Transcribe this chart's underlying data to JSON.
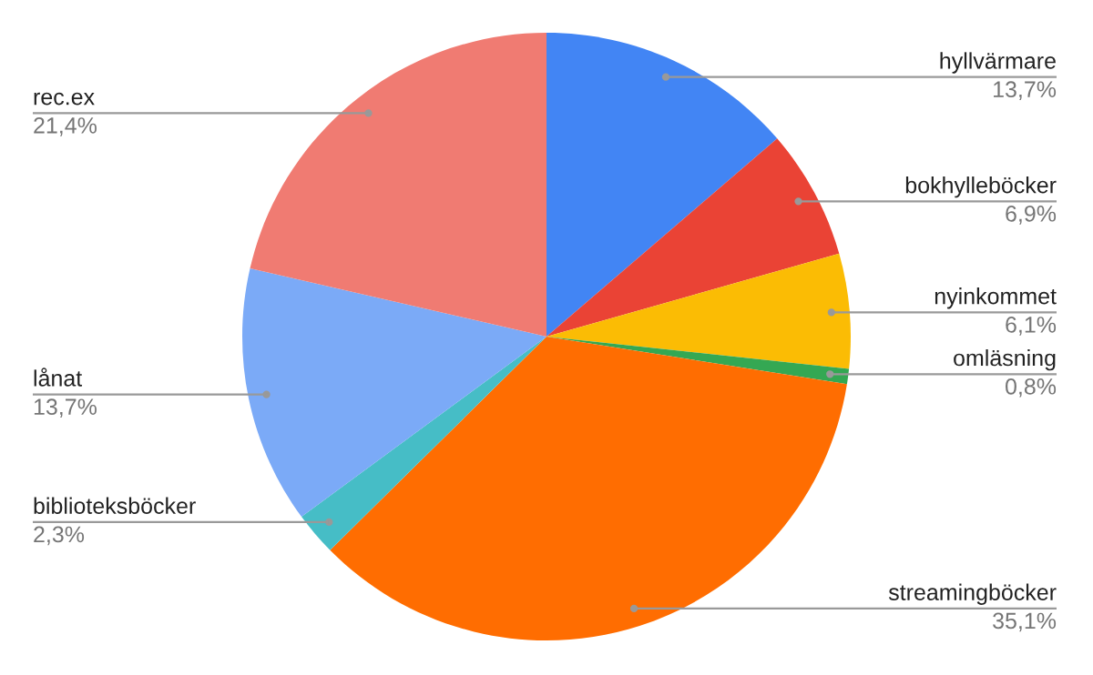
{
  "chart_data": {
    "type": "pie",
    "categories": [
      "hyllvärmare",
      "bokhylleböcker",
      "nyinkommet",
      "omläsning",
      "streamingböcker",
      "biblioteksböcker",
      "lånat",
      "rec.ex"
    ],
    "values": [
      13.7,
      6.9,
      6.1,
      0.8,
      35.1,
      2.3,
      13.7,
      21.4
    ],
    "value_labels": [
      "13,7%",
      "6,9%",
      "6,1%",
      "0,8%",
      "35,1%",
      "2,3%",
      "13,7%",
      "21,4%"
    ],
    "colors": [
      "#4285f4",
      "#ea4335",
      "#fbbc04",
      "#34a853",
      "#ff6d01",
      "#46bdc6",
      "#7baaf7",
      "#f07b72"
    ]
  }
}
